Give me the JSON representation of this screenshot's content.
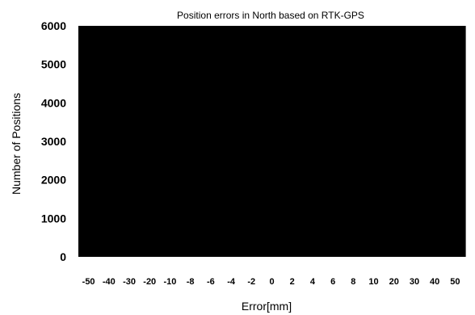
{
  "chart_data": {
    "type": "bar",
    "title": "Position errors in North based on RTK-GPS",
    "xlabel": "Error[mm]",
    "ylabel": "Number of Positions",
    "categories": [
      "-50",
      "-40",
      "-30",
      "-20",
      "-10",
      "-8",
      "-6",
      "-4",
      "-2",
      "0",
      "2",
      "4",
      "6",
      "8",
      "10",
      "20",
      "30",
      "40",
      "50"
    ],
    "values": [
      6000,
      6000,
      6000,
      6000,
      6000,
      6000,
      6000,
      6000,
      6000,
      6000,
      6000,
      6000,
      6000,
      6000,
      6000,
      6000,
      6000,
      6000,
      6000
    ],
    "ylim": [
      0,
      6000
    ],
    "yticks": [
      "0",
      "1000",
      "2000",
      "3000",
      "4000",
      "5000",
      "6000"
    ],
    "grid": false,
    "colors": {
      "bars": "#000000",
      "background": "#ffffff"
    }
  }
}
